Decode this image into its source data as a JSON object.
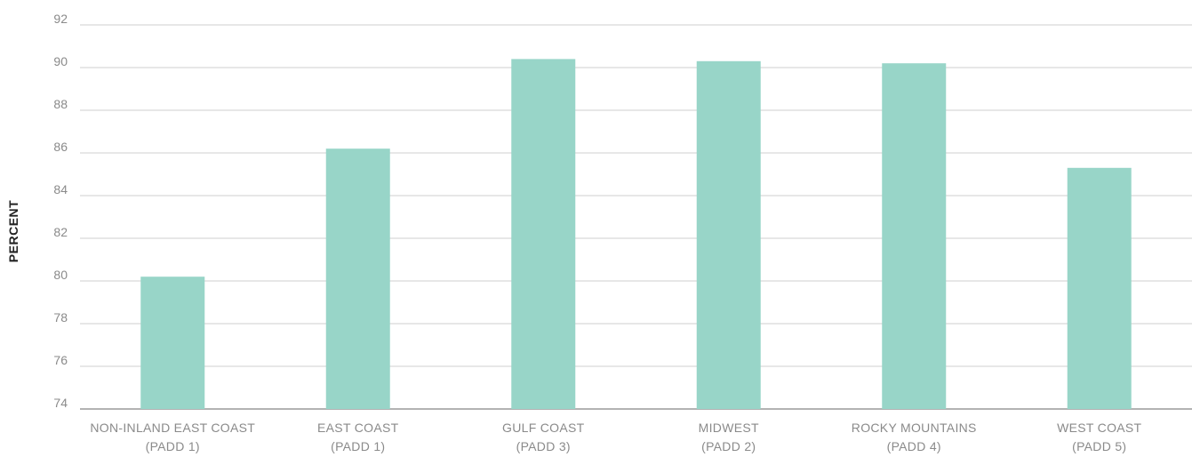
{
  "chart_data": {
    "type": "bar",
    "title": "",
    "xlabel": "",
    "ylabel": "PERCENT",
    "ylim": [
      74,
      92
    ],
    "yticks": [
      "74",
      "76",
      "78",
      "80",
      "82",
      "84",
      "86",
      "88",
      "90",
      "92"
    ],
    "grid": true,
    "legend": "none",
    "bar_color": "#98d5c8",
    "categories": [
      [
        "NON-INLAND EAST COAST",
        "(PADD 1)"
      ],
      [
        "EAST COAST",
        "(PADD 1)"
      ],
      [
        "GULF COAST",
        "(PADD 3)"
      ],
      [
        "MIDWEST",
        "(PADD 2)"
      ],
      [
        "ROCKY MOUNTAINS",
        "(PADD 4)"
      ],
      [
        "WEST COAST",
        "(PADD 5)"
      ]
    ],
    "values": [
      80.2,
      86.2,
      90.4,
      90.3,
      90.2,
      85.3
    ]
  }
}
